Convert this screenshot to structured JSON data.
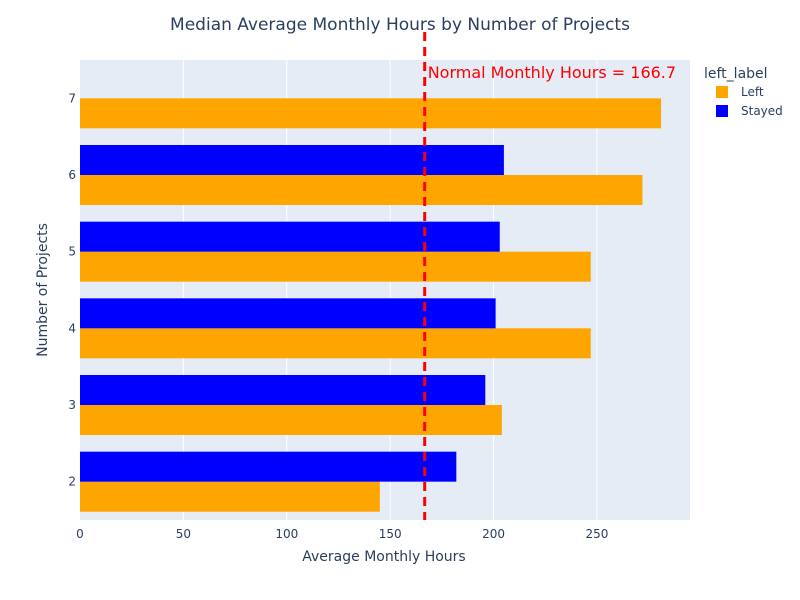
{
  "chart_data": {
    "type": "bar",
    "orientation": "horizontal",
    "title": "Median Average Monthly Hours by Number of Projects",
    "xlabel": "Average Monthly Hours",
    "ylabel": "Number of Projects",
    "xlim": [
      0,
      295
    ],
    "x_ticks": [
      0,
      50,
      100,
      150,
      200,
      250
    ],
    "categories": [
      "2",
      "3",
      "4",
      "5",
      "6",
      "7"
    ],
    "series": [
      {
        "name": "Left",
        "color": "#FFA500",
        "values": [
          145,
          204,
          247,
          247,
          272,
          281
        ]
      },
      {
        "name": "Stayed",
        "color": "#0000FF",
        "values": [
          182,
          196,
          201,
          203,
          205,
          null
        ]
      }
    ],
    "legend": {
      "title": "left_label",
      "position": "top-right"
    },
    "reference_line": {
      "value": 166.7,
      "color": "#FF0000",
      "style": "dashed",
      "label": "Normal Monthly Hours = 166.7"
    },
    "grid": true,
    "plot_bg": "#E5ECF6"
  }
}
